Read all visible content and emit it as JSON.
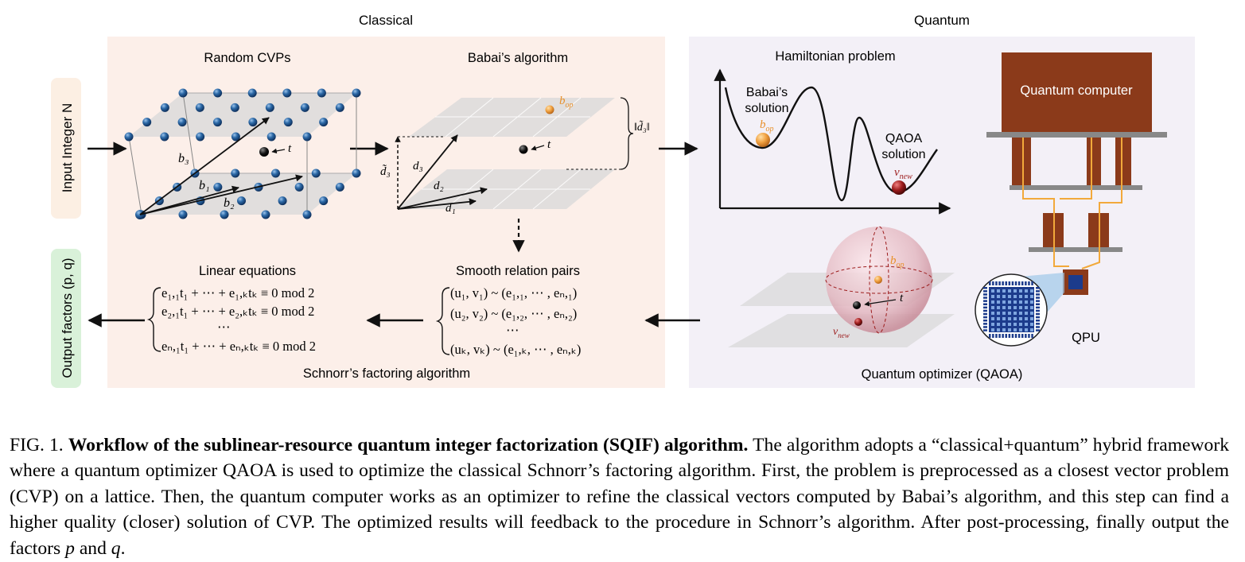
{
  "figure": {
    "section_labels": {
      "classical": "Classical",
      "quantum": "Quantum"
    },
    "side_labels": {
      "input": "Input Integer N",
      "output": "Output factors (p, q)"
    },
    "panels": {
      "random_cvps": "Random CVPs",
      "babai": "Babai’s algorithm",
      "hamiltonian": "Hamiltonian problem",
      "quantum_computer": "Quantum computer",
      "linear_equations": "Linear equations",
      "smooth_pairs": "Smooth relation pairs",
      "schnorr": "Schnorr’s factoring algorithm",
      "qaoa": "Quantum optimizer (QAOA)",
      "qpu": "QPU"
    },
    "lattice_labels": {
      "b3": "b₃",
      "b1": "b₁",
      "b2": "b₂",
      "t": "t"
    },
    "babai_labels": {
      "bop": "b",
      "bop_sub": "op",
      "t": "t",
      "d3": "d₃",
      "d2": "d₂",
      "d1": "d₁",
      "d3tilde": "d̃₃",
      "d3norm": "‖d̃₃‖"
    },
    "hamiltonian_labels": {
      "babai_solution_1": "Babai’s",
      "babai_solution_2": "solution",
      "qaoa_solution_1": "QAOA",
      "qaoa_solution_2": "solution",
      "bop": "b",
      "bop_sub": "op",
      "vnew": "v",
      "vnew_sub": "new"
    },
    "bloch_labels": {
      "bop": "b",
      "bop_sub": "op",
      "t": "t",
      "vnew": "v",
      "vnew_sub": "new"
    },
    "linear_equations": [
      "e₁,₁t₁ + ⋯ + e₁,ₖtₖ ≡ 0  mod 2",
      "e₂,₁t₁ + ⋯ + e₂,ₖtₖ ≡ 0  mod 2",
      "⋯",
      "eₙ,₁t₁ + ⋯ + eₙ,ₖtₖ ≡ 0  mod 2"
    ],
    "smooth_pairs": [
      "(u₁, v₁) ~ (e₁,₁, ⋯ , eₙ,₁)",
      "(u₂, v₂) ~ (e₁,₂, ⋯ , eₙ,₂)",
      "⋯",
      "(uₖ, vₖ) ~ (e₁,ₖ, ⋯ , eₙ,ₖ)"
    ],
    "colors": {
      "classical_bg": "#fcefe9",
      "quantum_bg": "#f3f0f7",
      "input_tag": "#fcefe3",
      "output_tag": "#d9f1d9",
      "lattice_node": "#2d6aa8",
      "qc_brown": "#8b3a1a",
      "wire_orange": "#f2a93b",
      "bop_orange": "#f0a040",
      "vnew_red": "#9c1c1c",
      "chip_blue": "#1c3b8c"
    }
  },
  "caption": {
    "lead": "FIG. 1.",
    "bold_title": "Workflow of the sublinear-resource quantum integer factorization (SQIF) algorithm.",
    "text_1": "The algorithm adopts a “classical+quantum” hybrid framework where a quantum optimizer QAOA is used to optimize the classical Schnorr’s factoring algorithm. First, the problem is preprocessed as a closest vector problem (CVP) on a lattice. Then, the quantum computer works as an optimizer to refine the classical vectors computed by Babai’s algorithm, and this step can find a higher quality (closer) solution of CVP. The optimized results will feedback to the procedure in Schnorr’s algorithm. After post-processing, finally output the factors",
    "p": "p",
    "and": "and",
    "q": "q",
    "end": "."
  }
}
